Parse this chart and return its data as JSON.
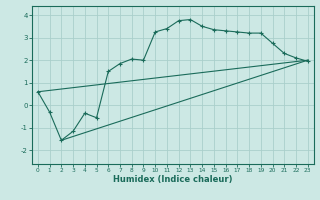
{
  "xlabel": "Humidex (Indice chaleur)",
  "bg_color": "#cce8e4",
  "grid_color": "#aacfcb",
  "line_color": "#1a6b5a",
  "xlim": [
    -0.5,
    23.5
  ],
  "ylim": [
    -2.6,
    4.4
  ],
  "xticks": [
    0,
    1,
    2,
    3,
    4,
    5,
    6,
    7,
    8,
    9,
    10,
    11,
    12,
    13,
    14,
    15,
    16,
    17,
    18,
    19,
    20,
    21,
    22,
    23
  ],
  "yticks": [
    -2,
    -1,
    0,
    1,
    2,
    3,
    4
  ],
  "main_x": [
    0,
    1,
    2,
    3,
    4,
    5,
    6,
    7,
    8,
    9,
    10,
    11,
    12,
    13,
    14,
    15,
    16,
    17,
    18,
    19,
    20,
    21,
    22,
    23
  ],
  "main_y": [
    0.6,
    -0.3,
    -1.55,
    -1.15,
    -0.35,
    -0.55,
    1.5,
    1.85,
    2.05,
    2.0,
    3.25,
    3.4,
    3.75,
    3.8,
    3.5,
    3.35,
    3.3,
    3.25,
    3.2,
    3.2,
    2.75,
    2.3,
    2.1,
    1.95
  ],
  "line1_x": [
    0,
    23
  ],
  "line1_y": [
    0.6,
    2.0
  ],
  "line2_x": [
    2,
    23
  ],
  "line2_y": [
    -1.55,
    2.0
  ]
}
